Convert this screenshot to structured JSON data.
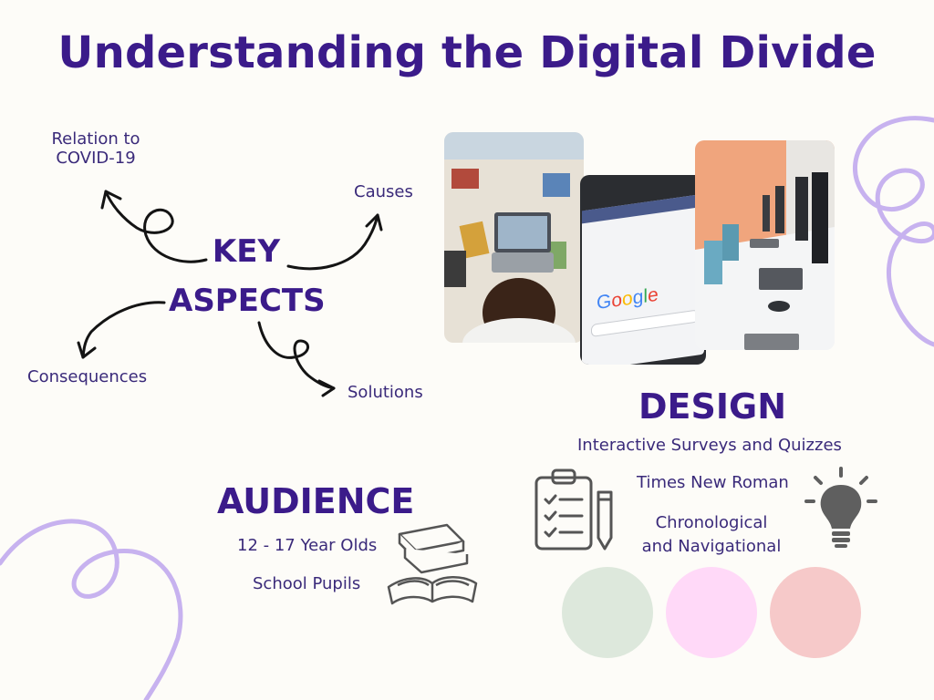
{
  "title": "Understanding the Digital Divide",
  "key_aspects": {
    "line1": "KEY",
    "line2": "ASPECTS",
    "branches": {
      "covid_line1": "Relation to",
      "covid_line2": "COVID-19",
      "causes": "Causes",
      "consequences": "Consequences",
      "solutions": "Solutions"
    }
  },
  "audience": {
    "heading": "AUDIENCE",
    "items": [
      "12 - 17 Year Olds",
      "School Pupils"
    ]
  },
  "design": {
    "heading": "DESIGN",
    "items": [
      "Interactive Surveys and Quizzes",
      "Times New Roman"
    ],
    "nav_line1": "Chronological",
    "nav_line2": "and Navigational"
  },
  "photos": {
    "google_logo": "Google"
  },
  "palette": {
    "sage": "#dde8dc",
    "pink": "#ffd9f8",
    "rose": "#f6c9c9",
    "swirl": "#c7b2ef",
    "heading": "#3b1b8a"
  },
  "icons": [
    "clipboard-checklist-icon",
    "pencil-icon",
    "books-icon",
    "lightbulb-icon"
  ]
}
